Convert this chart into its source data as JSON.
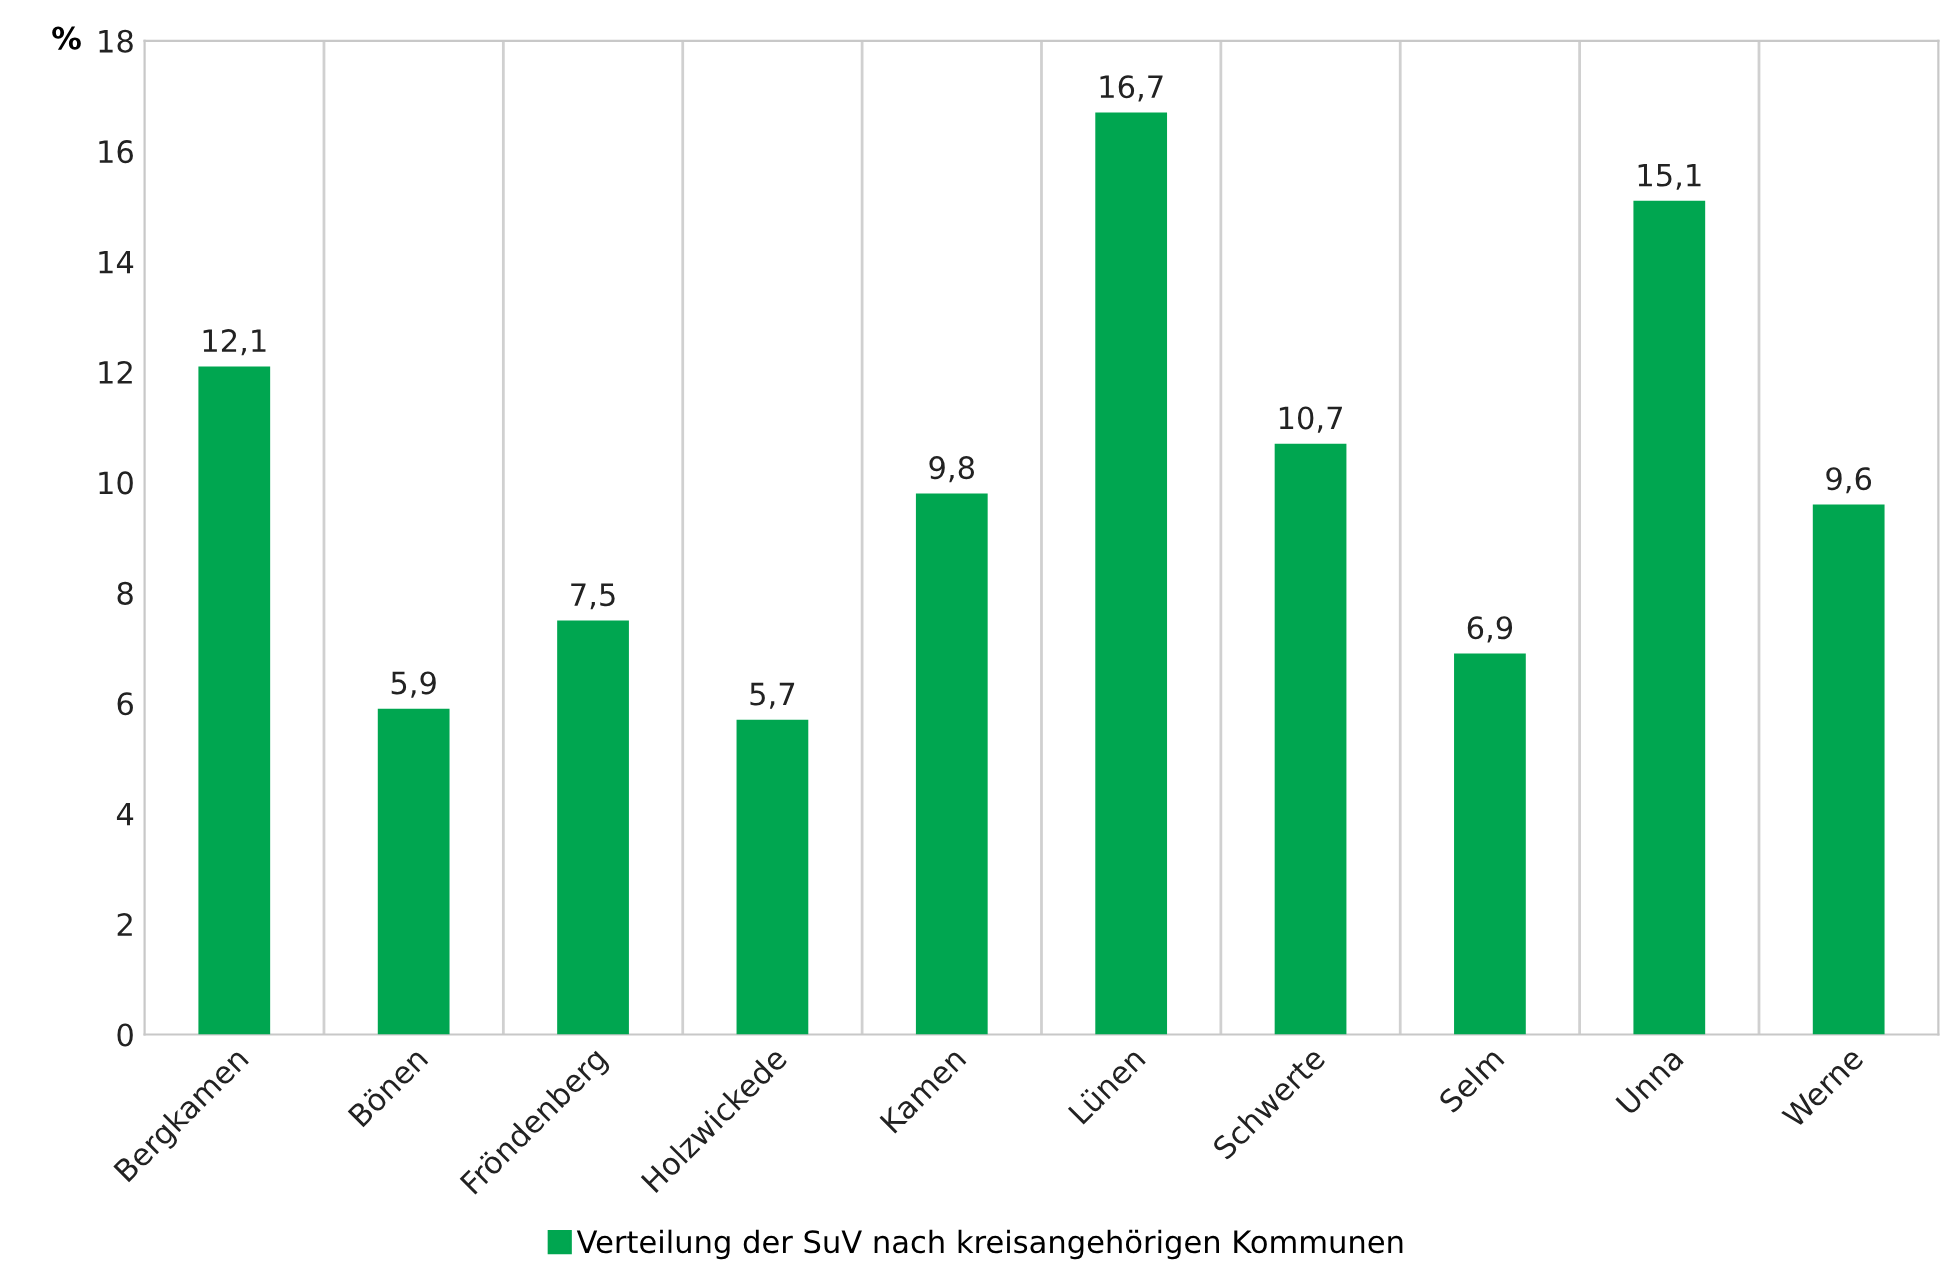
{
  "chart_data": {
    "type": "bar",
    "categories": [
      "Bergkamen",
      "Bönen",
      "Fröndenberg",
      "Holzwickede",
      "Kamen",
      "Lünen",
      "Schwerte",
      "Selm",
      "Unna",
      "Werne"
    ],
    "series": [
      {
        "name": "Verteilung der SuV nach kreisangehörigen Kommunen",
        "color": "#00a650",
        "values": [
          12.1,
          5.9,
          7.5,
          5.7,
          9.8,
          16.7,
          10.7,
          6.9,
          15.1,
          9.6
        ],
        "value_labels": [
          "12,1",
          "5,9",
          "7,5",
          "5,7",
          "9,8",
          "16,7",
          "10,7",
          "6,9",
          "15,1",
          "9,6"
        ]
      }
    ],
    "ylabel": "%",
    "ylim": [
      0,
      18
    ],
    "yticks": [
      0,
      2,
      4,
      6,
      8,
      10,
      12,
      14,
      16,
      18
    ],
    "grid": "x",
    "legend": "bottom"
  }
}
